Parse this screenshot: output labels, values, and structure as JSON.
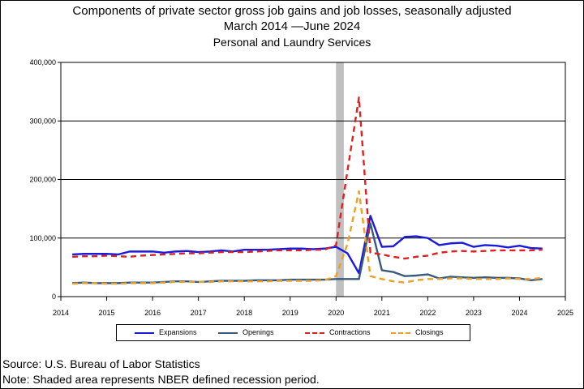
{
  "titles": {
    "line1": "Components of private sector gross job gains and job losses, seasonally adjusted",
    "line2": "March 2014 —June 2024",
    "line3": "Personal and Laundry Services"
  },
  "notes": {
    "source": "Source: U.S. Bureau of Labor Statistics",
    "note": "Note: Shaded area represents NBER defined recession period."
  },
  "chart_data": {
    "type": "line",
    "title": "Components of private sector gross job gains and job losses, seasonally adjusted",
    "xlabel": "",
    "ylabel": "",
    "xlim": [
      2014,
      2025
    ],
    "ylim": [
      0,
      400000
    ],
    "grid": true,
    "legend_position": "bottom",
    "x_ticks": [
      "2014",
      "2015",
      "2016",
      "2017",
      "2018",
      "2019",
      "2020",
      "2021",
      "2022",
      "2023",
      "2024",
      "2025"
    ],
    "y_ticks": [
      {
        "value": 0,
        "label": "0"
      },
      {
        "value": 100000,
        "label": "100,000"
      },
      {
        "value": 200000,
        "label": "200,000"
      },
      {
        "value": 300000,
        "label": "300,000"
      },
      {
        "value": 400000,
        "label": "400,000"
      }
    ],
    "recession": {
      "start": 2020.0,
      "end": 2020.17,
      "color": "#c0c0c0"
    },
    "x": [
      2014.25,
      2014.5,
      2014.75,
      2015.0,
      2015.25,
      2015.5,
      2015.75,
      2016.0,
      2016.25,
      2016.5,
      2016.75,
      2017.0,
      2017.25,
      2017.5,
      2017.75,
      2018.0,
      2018.25,
      2018.5,
      2018.75,
      2019.0,
      2019.25,
      2019.5,
      2019.75,
      2020.0,
      2020.25,
      2020.5,
      2020.75,
      2021.0,
      2021.25,
      2021.5,
      2021.75,
      2022.0,
      2022.25,
      2022.5,
      2022.75,
      2023.0,
      2023.25,
      2023.5,
      2023.75,
      2024.0,
      2024.25,
      2024.5
    ],
    "series": [
      {
        "name": "Expansions",
        "color": "#1a1adc",
        "dash": "solid",
        "values": [
          72000,
          73000,
          73000,
          73000,
          72000,
          77000,
          77000,
          77000,
          75000,
          77000,
          78000,
          76000,
          77000,
          79000,
          77000,
          80000,
          80000,
          80000,
          81000,
          82000,
          82000,
          81000,
          82000,
          85000,
          74000,
          40000,
          138000,
          85000,
          86000,
          102000,
          103000,
          100000,
          88000,
          91000,
          92000,
          85000,
          88000,
          87000,
          84000,
          87000,
          83000,
          82000
        ]
      },
      {
        "name": "Openings",
        "color": "#3a5a7a",
        "dash": "solid",
        "values": [
          23000,
          24000,
          23000,
          23000,
          23000,
          24000,
          24000,
          24000,
          25000,
          26000,
          26000,
          25000,
          26000,
          27000,
          27000,
          27000,
          28000,
          28000,
          28000,
          29000,
          29000,
          29000,
          29000,
          30000,
          30000,
          30000,
          125000,
          45000,
          42000,
          35000,
          36000,
          38000,
          31000,
          34000,
          33000,
          32000,
          33000,
          32000,
          32000,
          31000,
          28000,
          30000
        ]
      },
      {
        "name": "Contractions",
        "color": "#e02020",
        "dash": "dashed",
        "values": [
          68000,
          69000,
          69000,
          70000,
          69000,
          68000,
          70000,
          71000,
          72000,
          73000,
          74000,
          74000,
          75000,
          76000,
          76000,
          76000,
          77000,
          78000,
          79000,
          79000,
          79000,
          80000,
          80000,
          88000,
          215000,
          340000,
          75000,
          72000,
          68000,
          65000,
          68000,
          70000,
          75000,
          77000,
          78000,
          77000,
          78000,
          79000,
          79000,
          79000,
          79000,
          80000
        ]
      },
      {
        "name": "Closings",
        "color": "#f0a020",
        "dash": "dashed",
        "values": [
          22000,
          23000,
          23000,
          22000,
          22000,
          23000,
          23000,
          23000,
          24000,
          25000,
          25000,
          25000,
          25000,
          26000,
          26000,
          26000,
          26000,
          26000,
          27000,
          27000,
          27000,
          27000,
          28000,
          35000,
          90000,
          180000,
          35000,
          30000,
          26000,
          24000,
          28000,
          30000,
          30000,
          31000,
          31000,
          30000,
          30000,
          30000,
          31000,
          30000,
          30000,
          32000
        ]
      }
    ]
  }
}
